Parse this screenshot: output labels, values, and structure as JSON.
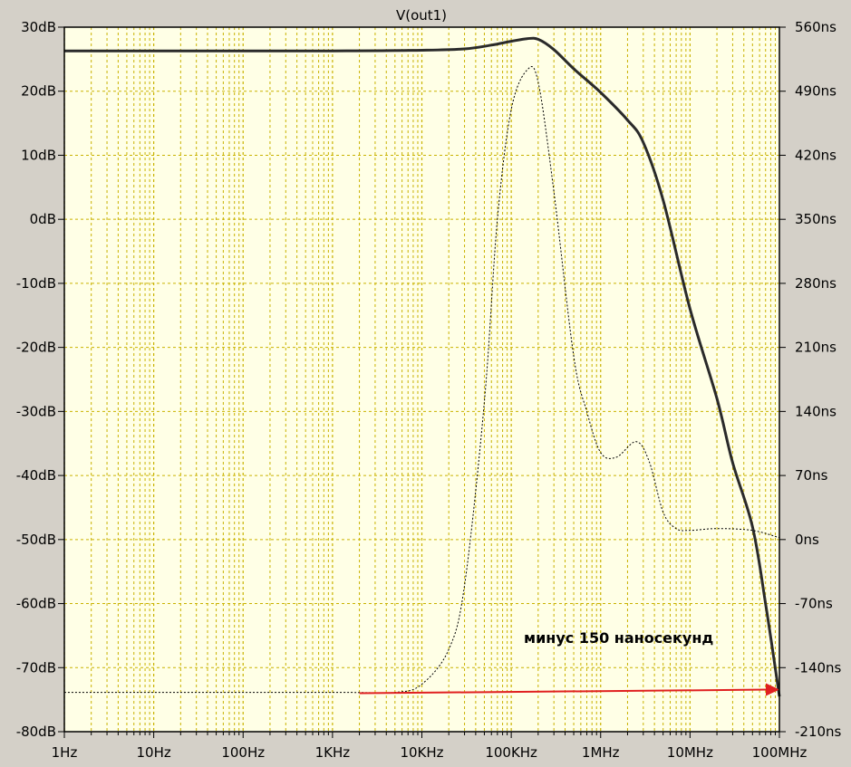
{
  "chart_data": {
    "type": "line",
    "title": "V(out1)",
    "x_scale": "log",
    "xlim": [
      1,
      100000000
    ],
    "x_ticks": [
      {
        "value": 1,
        "label": "1Hz"
      },
      {
        "value": 10,
        "label": "10Hz"
      },
      {
        "value": 100,
        "label": "100Hz"
      },
      {
        "value": 1000,
        "label": "1KHz"
      },
      {
        "value": 10000,
        "label": "10KHz"
      },
      {
        "value": 100000,
        "label": "100KHz"
      },
      {
        "value": 1000000,
        "label": "1MHz"
      },
      {
        "value": 10000000,
        "label": "10MHz"
      },
      {
        "value": 100000000,
        "label": "100MHz"
      }
    ],
    "y_left": {
      "ylim": [
        -80,
        30
      ],
      "ticks": [
        {
          "value": 30,
          "label": "30dB"
        },
        {
          "value": 20,
          "label": "20dB"
        },
        {
          "value": 10,
          "label": "10dB"
        },
        {
          "value": 0,
          "label": "0dB"
        },
        {
          "value": -10,
          "label": "-10dB"
        },
        {
          "value": -20,
          "label": "-20dB"
        },
        {
          "value": -30,
          "label": "-30dB"
        },
        {
          "value": -40,
          "label": "-40dB"
        },
        {
          "value": -50,
          "label": "-50dB"
        },
        {
          "value": -60,
          "label": "-60dB"
        },
        {
          "value": -70,
          "label": "-70dB"
        },
        {
          "value": -80,
          "label": "-80dB"
        }
      ]
    },
    "y_right": {
      "ylim": [
        -210,
        560
      ],
      "ticks": [
        {
          "value": 560,
          "label": "560ns"
        },
        {
          "value": 490,
          "label": "490ns"
        },
        {
          "value": 420,
          "label": "420ns"
        },
        {
          "value": 350,
          "label": "350ns"
        },
        {
          "value": 280,
          "label": "280ns"
        },
        {
          "value": 210,
          "label": "210ns"
        },
        {
          "value": 140,
          "label": "140ns"
        },
        {
          "value": 70,
          "label": "70ns"
        },
        {
          "value": 0,
          "label": "0ns"
        },
        {
          "value": -70,
          "label": "-70ns"
        },
        {
          "value": -140,
          "label": "-140ns"
        },
        {
          "value": -210,
          "label": "-210ns"
        }
      ]
    },
    "grid": true,
    "series": [
      {
        "axis": "left",
        "style": "solid",
        "color": "#2a2a2a",
        "points": [
          [
            1,
            26.3
          ],
          [
            1000,
            26.3
          ],
          [
            10000,
            26.4
          ],
          [
            30000,
            26.6
          ],
          [
            60000,
            27.2
          ],
          [
            100000,
            27.8
          ],
          [
            150000,
            28.2
          ],
          [
            200000,
            28.1
          ],
          [
            300000,
            26.5
          ],
          [
            500000,
            23.5
          ],
          [
            1000000,
            19.8
          ],
          [
            2000000,
            15.5
          ],
          [
            3000000,
            12.0
          ],
          [
            5000000,
            3.0
          ],
          [
            10000000,
            -14.0
          ],
          [
            20000000,
            -28.0
          ],
          [
            30000000,
            -38.0
          ],
          [
            50000000,
            -48.0
          ],
          [
            70000000,
            -60.0
          ],
          [
            100000000,
            -74.5
          ]
        ]
      },
      {
        "axis": "right",
        "style": "dotted",
        "color": "#000000",
        "points": [
          [
            1,
            -167
          ],
          [
            1000,
            -167
          ],
          [
            5000,
            -167
          ],
          [
            10000,
            -158
          ],
          [
            20000,
            -120
          ],
          [
            30000,
            -50
          ],
          [
            50000,
            150
          ],
          [
            70000,
            350
          ],
          [
            100000,
            470
          ],
          [
            150000,
            513
          ],
          [
            200000,
            500
          ],
          [
            300000,
            380
          ],
          [
            500000,
            200
          ],
          [
            700000,
            140
          ],
          [
            1000000,
            95
          ],
          [
            1500000,
            90
          ],
          [
            2500000,
            107
          ],
          [
            3500000,
            85
          ],
          [
            5000000,
            30
          ],
          [
            7000000,
            12
          ],
          [
            10000000,
            10
          ],
          [
            20000000,
            12
          ],
          [
            50000000,
            10
          ],
          [
            100000000,
            2
          ]
        ]
      }
    ],
    "annotation": {
      "text": "минус 150 наносекунд",
      "arrow_color": "#e02020",
      "arrow_from_x": 2000,
      "arrow_to_x": 100000000
    },
    "colors": {
      "plot_background": "#ffffe6",
      "grid": "#c9b200",
      "window_background": "#d4d0c8"
    }
  }
}
